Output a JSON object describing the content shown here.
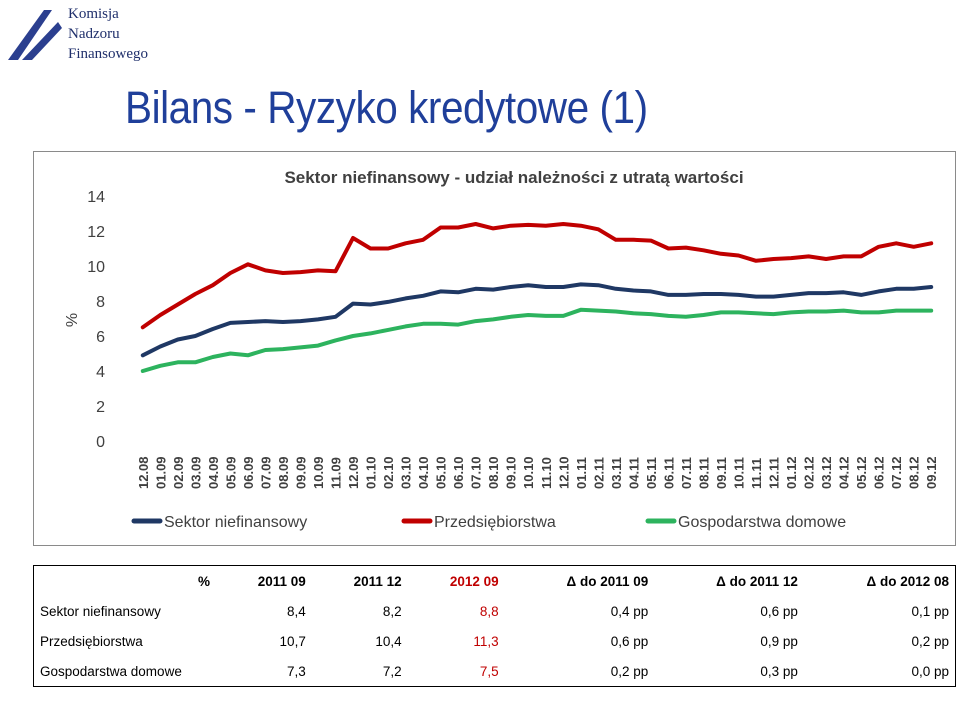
{
  "header": {
    "logo_lines": [
      "Komisja",
      "Nadzoru",
      "Finansowego"
    ],
    "title": "Bilans - Ryzyko kredytowe (1)"
  },
  "colors": {
    "title": "#1f3f9a",
    "series_sektor": "#1f3864",
    "series_przeds": "#c00000",
    "series_gosp": "#2db35e",
    "highlight": "#c00000"
  },
  "chart_data": {
    "type": "line",
    "title": "Sektor niefinansowy - udział należności z utratą wartości",
    "ylabel": "%",
    "xlabel": "",
    "ylim": [
      0,
      14
    ],
    "yticks": [
      0,
      2,
      4,
      6,
      8,
      10,
      12,
      14
    ],
    "grid": false,
    "legend_position": "bottom",
    "categories": [
      "12.08",
      "01.09",
      "02.09",
      "03.09",
      "04.09",
      "05.09",
      "06.09",
      "07.09",
      "08.09",
      "09.09",
      "10.09",
      "11.09",
      "12.09",
      "01.10",
      "02.10",
      "03.10",
      "04.10",
      "05.10",
      "06.10",
      "07.10",
      "08.10",
      "09.10",
      "10.10",
      "11.10",
      "12.10",
      "01.11",
      "02.11",
      "03.11",
      "04.11",
      "05.11",
      "06.11",
      "07.11",
      "08.11",
      "09.11",
      "10.11",
      "11.11",
      "12.11",
      "01.12",
      "02.12",
      "03.12",
      "04.12",
      "05.12",
      "06.12",
      "07.12",
      "08.12",
      "09.12"
    ],
    "series": [
      {
        "name": "Sektor niefinansowy",
        "color": "#1f3864",
        "values": [
          4.9,
          5.4,
          5.8,
          6.0,
          6.4,
          6.75,
          6.8,
          6.85,
          6.8,
          6.85,
          6.95,
          7.1,
          7.85,
          7.8,
          7.95,
          8.15,
          8.3,
          8.55,
          8.5,
          8.7,
          8.65,
          8.8,
          8.9,
          8.8,
          8.8,
          8.95,
          8.9,
          8.7,
          8.6,
          8.55,
          8.35,
          8.35,
          8.4,
          8.4,
          8.35,
          8.25,
          8.25,
          8.35,
          8.45,
          8.45,
          8.5,
          8.35,
          8.55,
          8.7,
          8.7,
          8.8
        ]
      },
      {
        "name": "Przedsiębiorstwa",
        "color": "#c00000",
        "values": [
          6.5,
          7.2,
          7.8,
          8.4,
          8.9,
          9.6,
          10.1,
          9.75,
          9.6,
          9.65,
          9.75,
          9.7,
          11.6,
          11.0,
          11.0,
          11.3,
          11.5,
          12.2,
          12.2,
          12.4,
          12.15,
          12.3,
          12.35,
          12.3,
          12.4,
          12.3,
          12.1,
          11.5,
          11.5,
          11.45,
          11.0,
          11.05,
          10.9,
          10.7,
          10.6,
          10.3,
          10.4,
          10.45,
          10.55,
          10.4,
          10.55,
          10.55,
          11.1,
          11.3,
          11.1,
          11.3
        ]
      },
      {
        "name": "Gospodarstwa domowe",
        "color": "#2db35e",
        "values": [
          4.0,
          4.3,
          4.5,
          4.5,
          4.8,
          5.0,
          4.9,
          5.2,
          5.25,
          5.35,
          5.45,
          5.75,
          6.0,
          6.15,
          6.35,
          6.55,
          6.7,
          6.7,
          6.65,
          6.85,
          6.95,
          7.1,
          7.2,
          7.15,
          7.15,
          7.5,
          7.45,
          7.4,
          7.3,
          7.25,
          7.15,
          7.1,
          7.2,
          7.35,
          7.35,
          7.3,
          7.25,
          7.35,
          7.4,
          7.4,
          7.45,
          7.35,
          7.35,
          7.45,
          7.45,
          7.45
        ]
      }
    ]
  },
  "table": {
    "headers": [
      "%",
      "2011 09",
      "2011 12",
      "2012 09",
      "Δ do 2011 09",
      "Δ do 2011 12",
      "Δ do 2012 08"
    ],
    "rows": [
      {
        "label": "Sektor niefinansowy",
        "values": [
          "8,4",
          "8,2",
          "8,8",
          "0,4 pp",
          "0,6 pp",
          "0,1 pp"
        ]
      },
      {
        "label": "Przedsiębiorstwa",
        "values": [
          "10,7",
          "10,4",
          "11,3",
          "0,6 pp",
          "0,9 pp",
          "0,2 pp"
        ]
      },
      {
        "label": "Gospodarstwa domowe",
        "values": [
          "7,3",
          "7,2",
          "7,5",
          "0,2 pp",
          "0,3 pp",
          "0,0 pp"
        ]
      }
    ]
  }
}
